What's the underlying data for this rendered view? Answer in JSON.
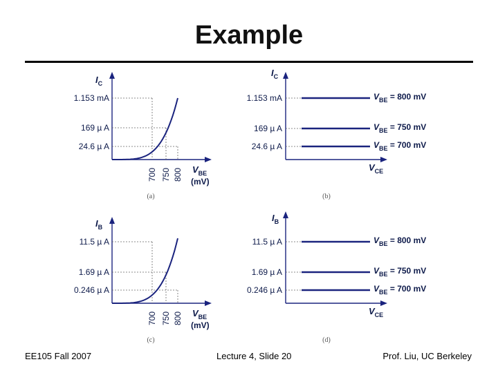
{
  "slide": {
    "title": "Example",
    "footer_left": "EE105 Fall 2007",
    "footer_center": "Lecture 4, Slide 20",
    "footer_right": "Prof. Liu, UC Berkeley"
  },
  "colors": {
    "curve": "#1a237e",
    "axis": "#1a237e",
    "text": "#0d1a4a"
  },
  "panels": {
    "a": {
      "caption": "(a)",
      "y_axis_main": "I",
      "y_axis_sub": "C",
      "x_axis_main": "V",
      "x_axis_sub": "BE",
      "x_unit": "(mV)",
      "y_ticks": [
        {
          "value": "1.153",
          "unit": "mA"
        },
        {
          "value": "169",
          "unit": "µ A"
        },
        {
          "value": "24.6",
          "unit": "µ A"
        }
      ],
      "x_ticks": [
        "700",
        "750",
        "800"
      ]
    },
    "b": {
      "caption": "(b)",
      "y_axis_main": "I",
      "y_axis_sub": "C",
      "x_axis_main": "V",
      "x_axis_sub": "CE",
      "y_ticks": [
        {
          "value": "1.153",
          "unit": "mA"
        },
        {
          "value": "169",
          "unit": "µ A"
        },
        {
          "value": "24.6",
          "unit": "µ A"
        }
      ],
      "line_labels": [
        {
          "main": "V",
          "sub": "BE",
          "text": "= 800 mV"
        },
        {
          "main": "V",
          "sub": "BE",
          "text": "= 750 mV"
        },
        {
          "main": "V",
          "sub": "BE",
          "text": "= 700 mV"
        }
      ]
    },
    "c": {
      "caption": "(c)",
      "y_axis_main": "I",
      "y_axis_sub": "B",
      "x_axis_main": "V",
      "x_axis_sub": "BE",
      "x_unit": "(mV)",
      "y_ticks": [
        {
          "value": "11.5",
          "unit": "µ A"
        },
        {
          "value": "1.69",
          "unit": "µ A"
        },
        {
          "value": "0.246",
          "unit": "µ A"
        }
      ],
      "x_ticks": [
        "700",
        "750",
        "800"
      ]
    },
    "d": {
      "caption": "(d)",
      "y_axis_main": "I",
      "y_axis_sub": "B",
      "x_axis_main": "V",
      "x_axis_sub": "CE",
      "y_ticks": [
        {
          "value": "11.5",
          "unit": "µ A"
        },
        {
          "value": "1.69",
          "unit": "µ A"
        },
        {
          "value": "0.246",
          "unit": "µ A"
        }
      ],
      "line_labels": [
        {
          "main": "V",
          "sub": "BE",
          "text": "= 800 mV"
        },
        {
          "main": "V",
          "sub": "BE",
          "text": "= 750 mV"
        },
        {
          "main": "V",
          "sub": "BE",
          "text": "= 700 mV"
        }
      ]
    }
  }
}
